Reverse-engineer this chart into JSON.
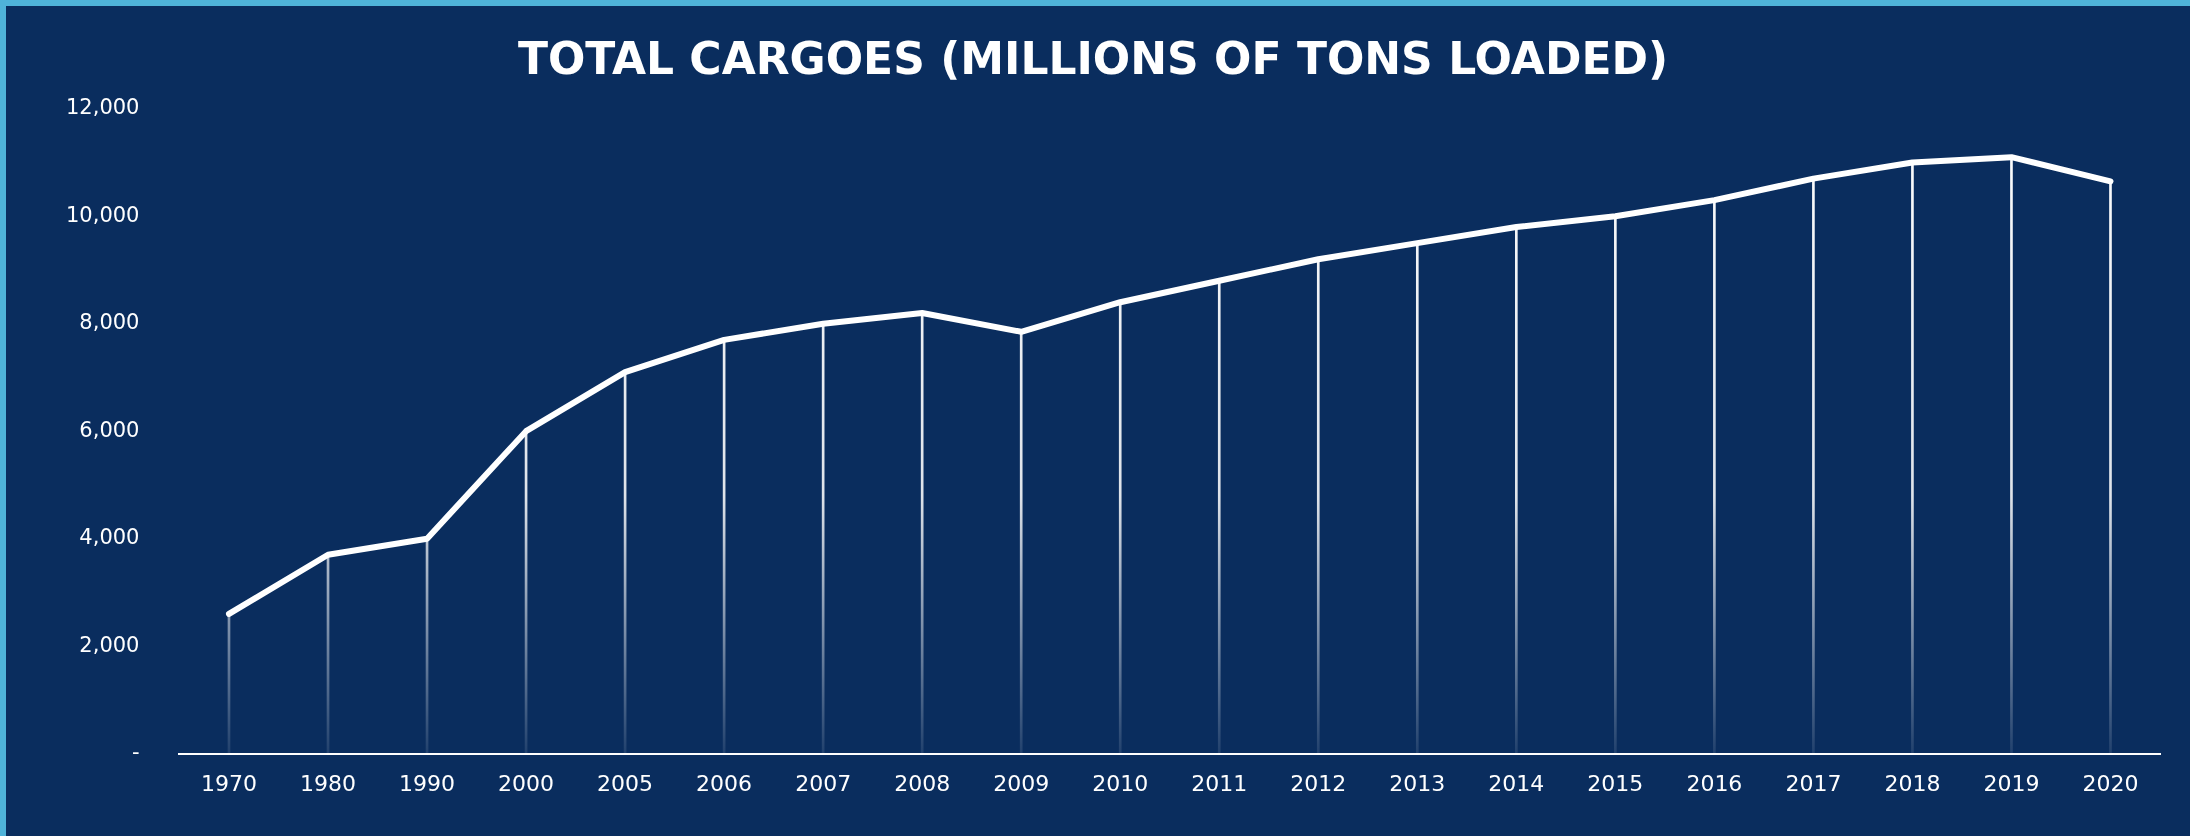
{
  "chart_data": {
    "type": "line",
    "title": "TOTAL CARGOES (MILLIONS OF TONS LOADED)",
    "categories": [
      "1970",
      "1980",
      "1990",
      "2000",
      "2005",
      "2006",
      "2007",
      "2008",
      "2009",
      "2010",
      "2011",
      "2012",
      "2013",
      "2014",
      "2015",
      "2016",
      "2017",
      "2018",
      "2019",
      "2020"
    ],
    "series": [
      {
        "color": "#ffffff",
        "values": [
          2600,
          3700,
          4000,
          6000,
          7100,
          7700,
          8000,
          8200,
          7850,
          8400,
          8800,
          9200,
          9500,
          9800,
          10000,
          10300,
          10700,
          11000,
          11100,
          10650
        ]
      },
      {
        "type": "bar",
        "color": "#ffffff",
        "values": [
          2600,
          3700,
          4000,
          6000,
          7100,
          7700,
          8000,
          8200,
          7850,
          8400,
          8800,
          9200,
          9500,
          9800,
          10000,
          10300,
          10700,
          11000,
          11100,
          10650
        ]
      }
    ],
    "ylim": [
      0,
      12000
    ],
    "yticks": [
      {
        "value": 0,
        "label": "-"
      },
      {
        "value": 2000,
        "label": "2,000"
      },
      {
        "value": 4000,
        "label": "4,000"
      },
      {
        "value": 6000,
        "label": "6,000"
      },
      {
        "value": 8000,
        "label": "8,000"
      },
      {
        "value": 10000,
        "label": "10,000"
      },
      {
        "value": 12000,
        "label": "12,000"
      }
    ],
    "grid": false,
    "legend": false,
    "marker": "none",
    "line_style": "solid"
  }
}
